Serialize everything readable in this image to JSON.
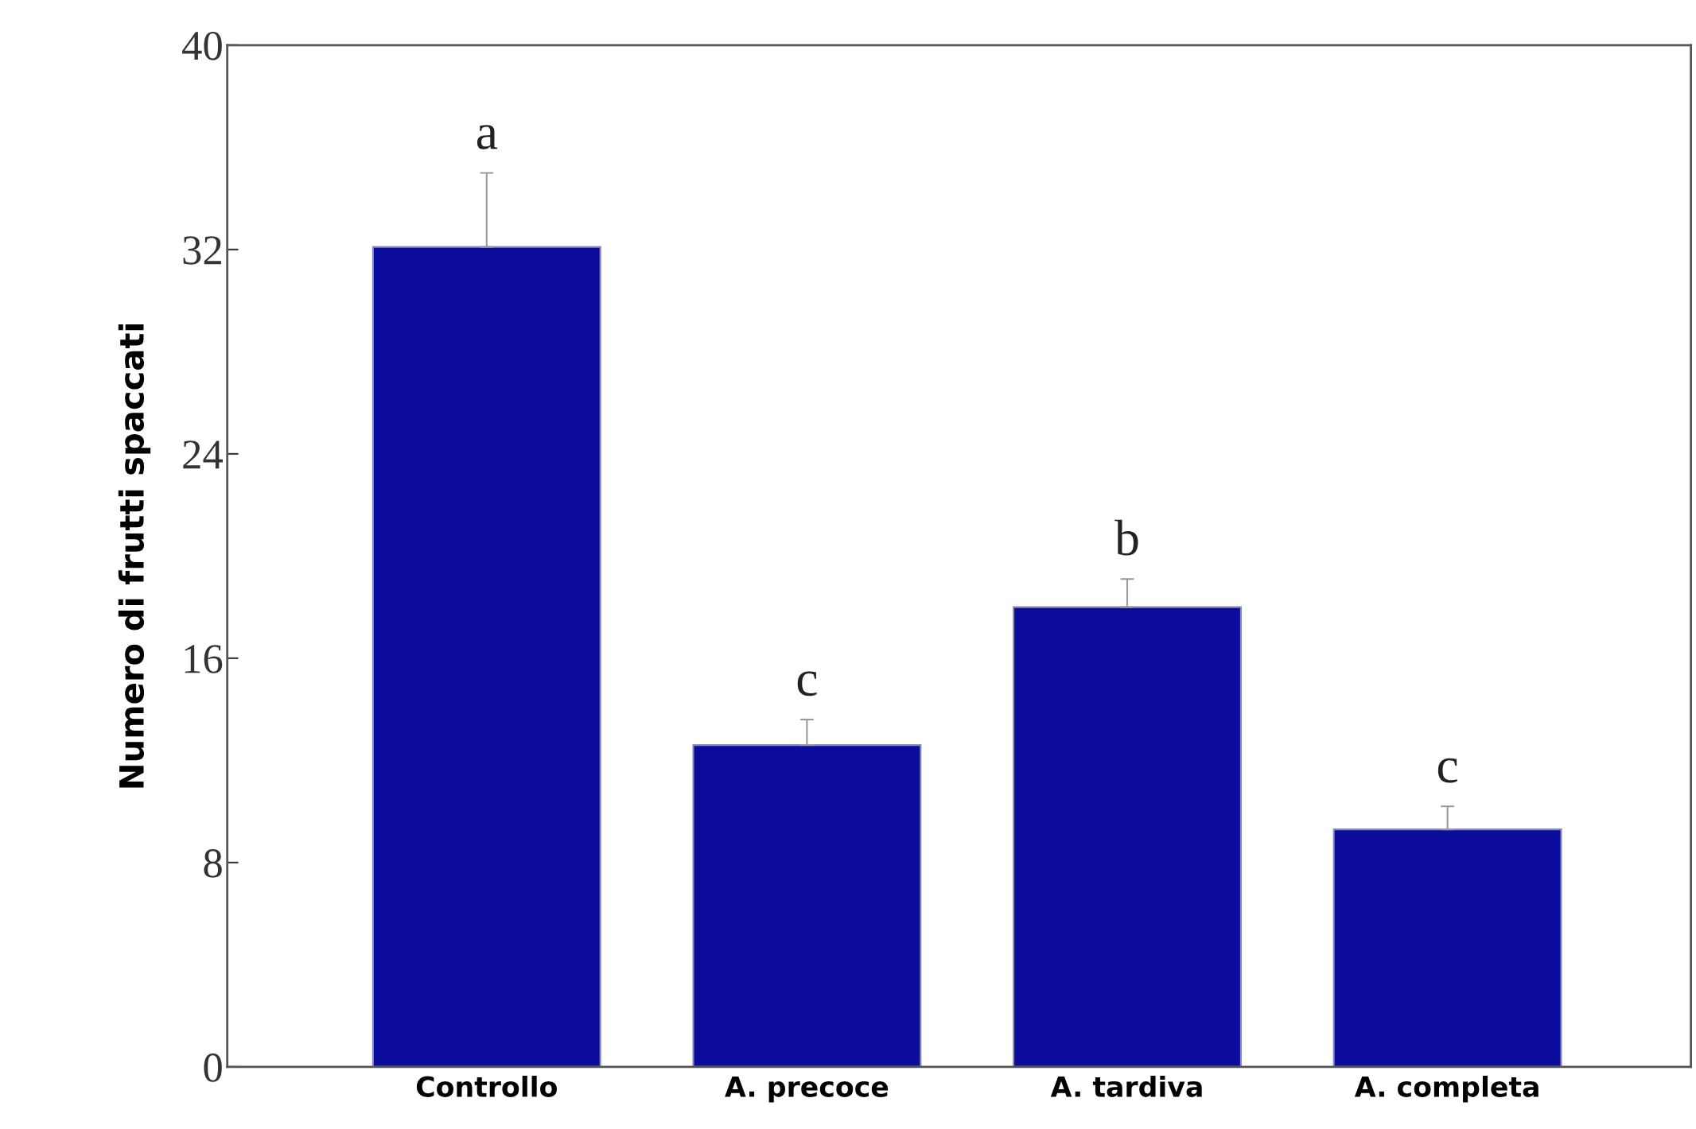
{
  "chart_data": {
    "type": "bar",
    "ylabel": "Numero di frutti spaccati",
    "categories": [
      "Controllo",
      "A. precoce",
      "A. tardiva",
      "A. completa"
    ],
    "values": [
      32.1,
      12.6,
      18.0,
      9.3
    ],
    "errors": [
      [
        32.1,
        35.0
      ],
      [
        12.6,
        13.6
      ],
      [
        18.0,
        19.1
      ],
      [
        9.3,
        10.2
      ]
    ],
    "color": "#0b0b9c",
    "ylim": [
      0,
      40
    ],
    "yticks": [
      0,
      8,
      16,
      24,
      32,
      40
    ],
    "grid": false,
    "annotations": [
      "a",
      "c",
      "b",
      "c"
    ]
  }
}
